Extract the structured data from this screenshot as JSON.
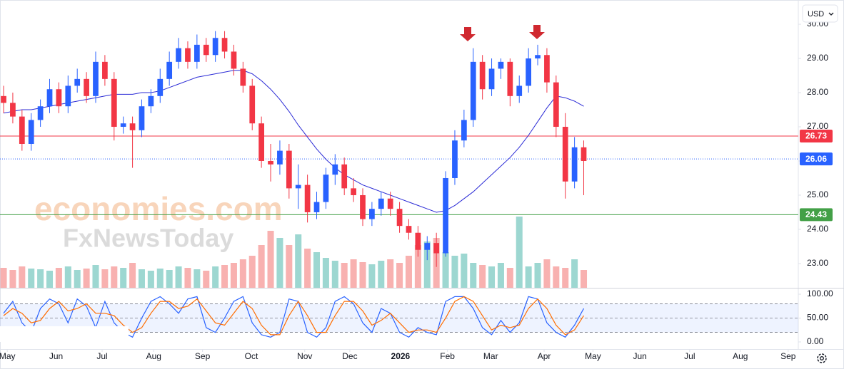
{
  "chart_data": {
    "type": "candlestick",
    "currency": "USD",
    "watermark": [
      "economies.com",
      "FxNewsToday"
    ],
    "up_color": "#2962ff",
    "down_color": "#f23645",
    "xlim": [
      -0.39,
      86.3
    ],
    "xticks": [
      {
        "value": 0.4,
        "label": "May"
      },
      {
        "value": 5.7,
        "label": "Jun"
      },
      {
        "value": 10.7,
        "label": "Jul"
      },
      {
        "value": 16.3,
        "label": "Aug"
      },
      {
        "value": 21.6,
        "label": "Sep"
      },
      {
        "value": 26.9,
        "label": "Oct"
      },
      {
        "value": 32.7,
        "label": "Nov"
      },
      {
        "value": 37.6,
        "label": "Dec"
      },
      {
        "value": 43.1,
        "label": "2026"
      },
      {
        "value": 48.2,
        "label": "Feb"
      },
      {
        "value": 52.9,
        "label": "Mar"
      },
      {
        "value": 58.7,
        "label": "Apr"
      },
      {
        "value": 64,
        "label": "May"
      },
      {
        "value": 69.1,
        "label": "Jun"
      },
      {
        "value": 74.5,
        "label": "Jul"
      },
      {
        "value": 80,
        "label": "Aug"
      },
      {
        "value": 85.2,
        "label": "Sep"
      }
    ],
    "ylim": [
      22.29,
      30.71
    ],
    "yticks": [
      {
        "value": 23,
        "label": "23.00"
      },
      {
        "value": 24,
        "label": "24.00"
      },
      {
        "value": 25,
        "label": "25.00"
      },
      {
        "value": 26,
        "label": "26.00"
      },
      {
        "value": 27,
        "label": "27.00"
      },
      {
        "value": 28,
        "label": "28.00"
      },
      {
        "value": 29,
        "label": "29.00"
      },
      {
        "value": 30,
        "label": "30.00"
      }
    ],
    "open": [
      27.9,
      27.7,
      27.3,
      26.5,
      27.2,
      27.6,
      28.1,
      27.6,
      28.2,
      28.4,
      27.9,
      28.9,
      28.4,
      27.0,
      27.1,
      26.9,
      27.6,
      27.9,
      28.4,
      28.9,
      29.3,
      28.9,
      29.4,
      29.1,
      29.6,
      29.2,
      28.7,
      28.2,
      27.1,
      26.0,
      25.9,
      26.3,
      25.2,
      25.3,
      24.5,
      24.8,
      25.6,
      25.9,
      25.2,
      25.0,
      24.3,
      24.6,
      24.9,
      24.6,
      24.1,
      23.9,
      23.4,
      23.6,
      23.3,
      25.5,
      26.6,
      27.2,
      28.9,
      28.1,
      28.7,
      28.9,
      27.9,
      28.2,
      29.0,
      29.1,
      28.3,
      27.0,
      25.4,
      26.4
    ],
    "high": [
      28.2,
      28.0,
      27.5,
      27.4,
      27.8,
      28.4,
      28.3,
      28.5,
      28.7,
      28.6,
      29.2,
      29.1,
      28.6,
      27.3,
      27.3,
      27.8,
      28.1,
      28.7,
      29.2,
      29.6,
      29.5,
      29.7,
      29.6,
      29.8,
      29.8,
      29.4,
      28.9,
      28.4,
      27.3,
      26.5,
      26.6,
      26.5,
      25.9,
      25.6,
      25.1,
      25.8,
      26.2,
      26.1,
      25.5,
      25.2,
      24.8,
      25.1,
      25.1,
      24.8,
      24.3,
      24.1,
      23.8,
      23.9,
      25.7,
      26.9,
      27.5,
      29.3,
      29.1,
      29.0,
      29.0,
      29.0,
      28.5,
      29.3,
      29.4,
      29.3,
      28.5,
      27.4,
      26.7,
      26.6
    ],
    "low": [
      27.4,
      27.1,
      26.3,
      26.3,
      27.0,
      27.4,
      27.4,
      27.4,
      28.0,
      27.7,
      27.7,
      28.2,
      26.6,
      26.8,
      25.8,
      26.7,
      27.4,
      27.7,
      28.2,
      28.7,
      28.7,
      28.7,
      28.9,
      28.9,
      29.0,
      28.5,
      28.0,
      26.9,
      25.8,
      25.4,
      25.6,
      24.9,
      24.6,
      24.2,
      24.3,
      24.6,
      25.3,
      25.0,
      24.8,
      24.1,
      24.1,
      24.4,
      24.4,
      23.9,
      23.7,
      23.2,
      23.1,
      22.9,
      23.2,
      25.3,
      26.4,
      27.0,
      27.8,
      27.9,
      28.4,
      27.6,
      27.7,
      28.0,
      28.8,
      28.0,
      26.7,
      24.9,
      25.2,
      25.0
    ],
    "close": [
      27.7,
      27.3,
      26.5,
      27.2,
      27.6,
      28.1,
      27.6,
      28.2,
      28.4,
      27.9,
      28.9,
      28.4,
      27.0,
      27.1,
      26.9,
      27.6,
      27.9,
      28.4,
      28.9,
      29.3,
      28.9,
      29.4,
      29.1,
      29.6,
      29.2,
      28.7,
      28.2,
      27.1,
      26.0,
      25.9,
      26.3,
      25.2,
      25.3,
      24.5,
      24.8,
      25.6,
      25.9,
      25.2,
      25.0,
      24.3,
      24.6,
      24.9,
      24.6,
      24.1,
      23.9,
      23.4,
      23.6,
      23.3,
      25.5,
      26.6,
      27.2,
      28.9,
      28.1,
      28.7,
      28.9,
      27.9,
      28.2,
      29.0,
      29.1,
      28.3,
      27.0,
      25.4,
      26.4,
      26.0
    ],
    "moving_average": {
      "color": "#2b2bd6",
      "values": [
        27.4,
        27.45,
        27.5,
        27.5,
        27.55,
        27.6,
        27.65,
        27.7,
        27.75,
        27.8,
        27.85,
        27.9,
        27.95,
        27.95,
        27.95,
        28.0,
        28.0,
        28.05,
        28.15,
        28.25,
        28.35,
        28.45,
        28.5,
        28.55,
        28.6,
        28.65,
        28.65,
        28.55,
        28.35,
        28.1,
        27.8,
        27.45,
        27.05,
        26.7,
        26.35,
        26.05,
        25.8,
        25.6,
        25.45,
        25.3,
        25.2,
        25.1,
        25.0,
        24.9,
        24.8,
        24.7,
        24.6,
        24.5,
        24.55,
        24.7,
        24.9,
        25.1,
        25.35,
        25.6,
        25.85,
        26.1,
        26.4,
        26.75,
        27.15,
        27.55,
        27.9,
        27.85,
        27.75,
        27.6
      ]
    },
    "volume": [
      28,
      25,
      30,
      27,
      26,
      24,
      28,
      30,
      25,
      27,
      32,
      26,
      30,
      28,
      35,
      26,
      24,
      27,
      25,
      30,
      28,
      26,
      24,
      30,
      32,
      35,
      40,
      45,
      60,
      80,
      70,
      60,
      75,
      55,
      50,
      42,
      38,
      35,
      40,
      36,
      33,
      38,
      40,
      35,
      45,
      60,
      65,
      70,
      50,
      45,
      48,
      35,
      32,
      30,
      35,
      28,
      100,
      30,
      35,
      40,
      30,
      28,
      40,
      25
    ],
    "price_lines": [
      {
        "value": 26.73,
        "label": "26.73",
        "color": "#f23645",
        "style": "solid"
      },
      {
        "value": 26.06,
        "label": "26.06",
        "color": "#2962ff",
        "style": "dotted"
      },
      {
        "value": 24.43,
        "label": "24.43",
        "color": "#43a047",
        "style": "solid"
      }
    ],
    "stochastic": {
      "ylim": [
        -15,
        112
      ],
      "yticks": [
        {
          "value": 0,
          "label": "0.00"
        },
        {
          "value": 50,
          "label": "50.00"
        },
        {
          "value": 100,
          "label": "100.00"
        }
      ],
      "bands": [
        20,
        50,
        80
      ],
      "series": [
        {
          "color": "#2962ff",
          "values": [
            60,
            85,
            40,
            20,
            70,
            90,
            80,
            40,
            90,
            75,
            30,
            85,
            40,
            20,
            10,
            50,
            85,
            95,
            80,
            60,
            90,
            95,
            30,
            20,
            50,
            85,
            95,
            40,
            15,
            10,
            20,
            90,
            85,
            20,
            10,
            30,
            85,
            95,
            80,
            40,
            20,
            70,
            60,
            20,
            10,
            30,
            20,
            15,
            85,
            95,
            95,
            70,
            30,
            15,
            45,
            20,
            40,
            95,
            90,
            40,
            20,
            10,
            35,
            70
          ]
        },
        {
          "color": "#ff6d00",
          "values": [
            55,
            70,
            60,
            40,
            45,
            70,
            85,
            65,
            70,
            80,
            60,
            60,
            55,
            35,
            20,
            30,
            60,
            85,
            85,
            70,
            75,
            90,
            65,
            40,
            35,
            60,
            85,
            70,
            35,
            15,
            15,
            55,
            85,
            55,
            20,
            20,
            55,
            85,
            85,
            65,
            35,
            45,
            60,
            40,
            20,
            25,
            25,
            20,
            50,
            85,
            95,
            85,
            55,
            25,
            35,
            30,
            35,
            70,
            90,
            70,
            35,
            15,
            25,
            55
          ]
        }
      ]
    }
  }
}
